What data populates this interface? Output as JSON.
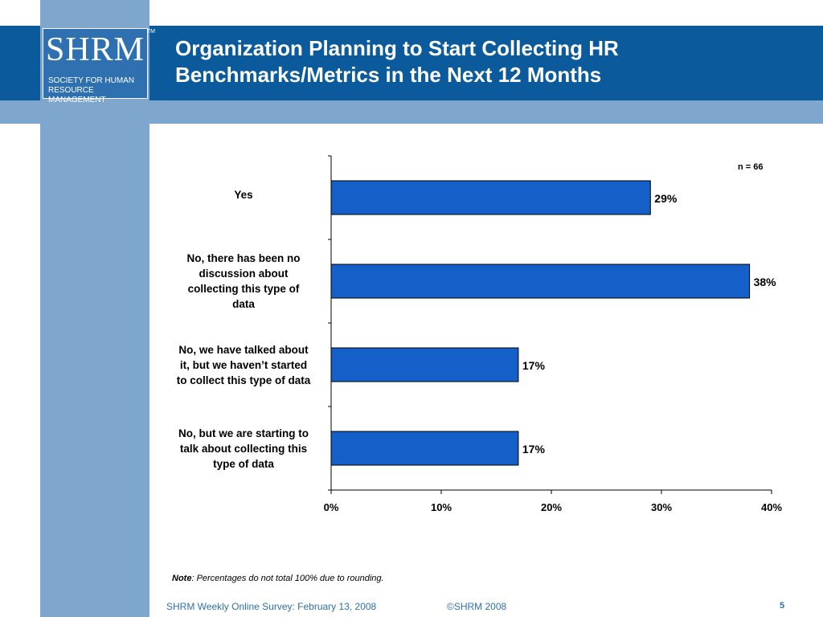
{
  "header": {
    "logo_text": "SHRM",
    "logo_tm": "TM",
    "logo_line1": "SOCIETY FOR HUMAN",
    "logo_line2": "RESOURCE MANAGEMENT",
    "title_line1": "Organization Planning to Start Collecting HR",
    "title_line2": "Benchmarks/Metrics in the Next 12 Months"
  },
  "chart_data": {
    "type": "bar",
    "orientation": "horizontal",
    "categories": [
      "Yes",
      "No, there has been no discussion about collecting this type of data",
      "No, we have talked about it, but we haven’t started to collect this type of data",
      "No, but we are starting to talk about collecting this type of data"
    ],
    "category_lines": [
      [
        "Yes"
      ],
      [
        "No, there has been no",
        "discussion about",
        "collecting this type of",
        "data"
      ],
      [
        "No, we have talked about",
        "it, but we haven’t started",
        "to collect this type of data"
      ],
      [
        "No, but we are starting to",
        "talk about collecting this",
        "type of data"
      ]
    ],
    "values": [
      29,
      38,
      17,
      17
    ],
    "value_labels": [
      "29%",
      "38%",
      "17%",
      "17%"
    ],
    "xlim": [
      0,
      40
    ],
    "xticks": [
      0,
      10,
      20,
      30,
      40
    ],
    "xtick_labels": [
      "0%",
      "10%",
      "20%",
      "30%",
      "40%"
    ],
    "annotation": "n = 66",
    "bar_color": "#1560c8"
  },
  "note": {
    "bold": "Note",
    "text": ": Percentages do not total 100% due to rounding."
  },
  "footer": {
    "survey": "SHRM Weekly Online Survey: February  13, 2008",
    "copyright": "©SHRM 2008",
    "page": "5"
  }
}
